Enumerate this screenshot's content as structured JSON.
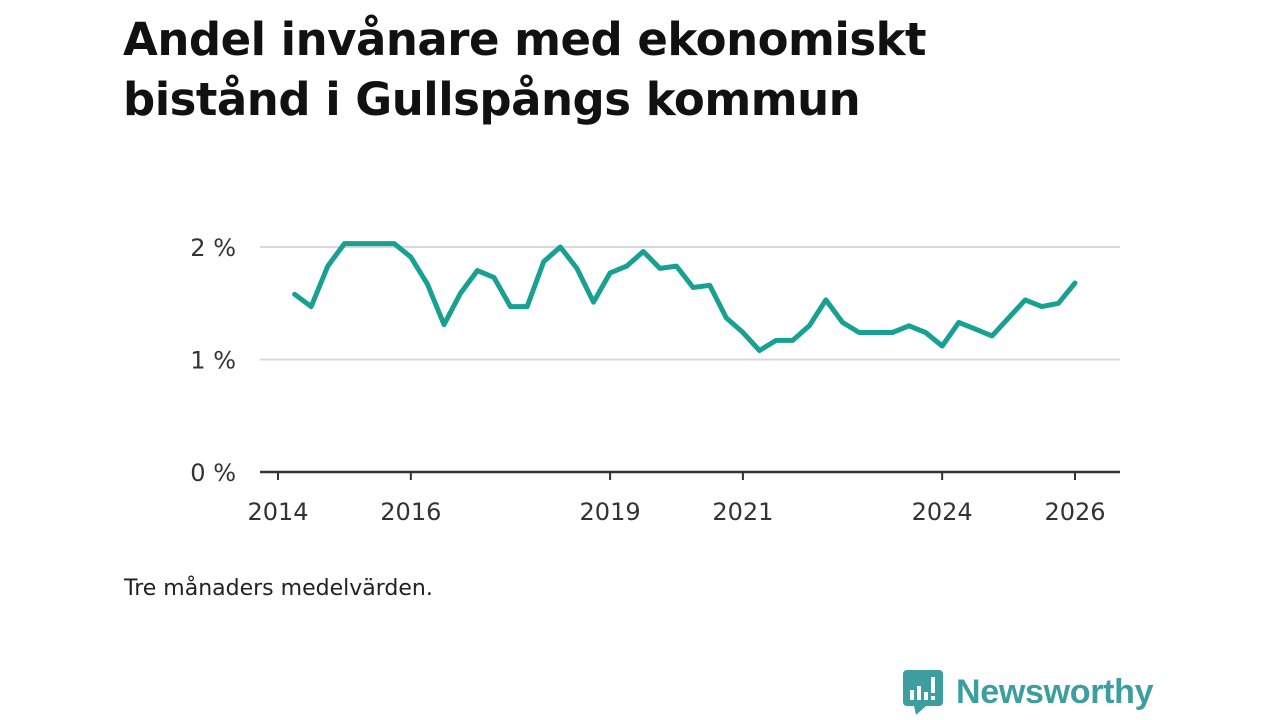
{
  "title_lines": [
    "Andel invånare med ekonomiskt",
    "bistånd i Gullspångs kommun"
  ],
  "caption": "Tre månaders medelvärden.",
  "brand": "Newsworthy",
  "colors": {
    "line": "#18a093",
    "grid": "#d9d9d9",
    "axis": "#333333",
    "brand": "#3d9ea0"
  },
  "chart_data": {
    "type": "line",
    "title": "Andel invånare med ekonomiskt bistånd i Gullspångs kommun",
    "xlabel": "",
    "ylabel": "",
    "xlim": [
      2013.75,
      2026.25
    ],
    "ylim": [
      0,
      2
    ],
    "grid": true,
    "y_ticks": [
      {
        "value": 0,
        "label": "0 %"
      },
      {
        "value": 1,
        "label": "1 %"
      },
      {
        "value": 2,
        "label": "2 %"
      }
    ],
    "x_ticks": [
      {
        "value": 2014,
        "label": "2014"
      },
      {
        "value": 2016,
        "label": "2016"
      },
      {
        "value": 2019,
        "label": "2019"
      },
      {
        "value": 2021,
        "label": "2021"
      },
      {
        "value": 2024,
        "label": "2024"
      },
      {
        "value": 2026,
        "label": "2026"
      }
    ],
    "series": [
      {
        "name": "Andel invånare med ekonomiskt bistånd",
        "x": [
          2014.25,
          2014.5,
          2014.75,
          2015.0,
          2015.25,
          2015.5,
          2015.75,
          2016.0,
          2016.25,
          2016.5,
          2016.75,
          2017.0,
          2017.25,
          2017.5,
          2017.75,
          2018.0,
          2018.25,
          2018.5,
          2018.75,
          2019.0,
          2019.25,
          2019.5,
          2019.75,
          2020.0,
          2020.25,
          2020.5,
          2020.75,
          2021.0,
          2021.25,
          2021.5,
          2021.75,
          2022.0,
          2022.25,
          2022.5,
          2022.75,
          2023.0,
          2023.25,
          2023.5,
          2023.75,
          2024.0,
          2024.25,
          2024.5,
          2024.75,
          2025.0,
          2025.25,
          2025.5,
          2025.75,
          2026.0
        ],
        "values": [
          1.58,
          1.47,
          1.83,
          2.03,
          2.03,
          2.03,
          2.03,
          1.91,
          1.67,
          1.31,
          1.59,
          1.79,
          1.73,
          1.47,
          1.47,
          1.87,
          2.0,
          1.81,
          1.51,
          1.77,
          1.83,
          1.96,
          1.81,
          1.83,
          1.64,
          1.66,
          1.37,
          1.24,
          1.08,
          1.17,
          1.17,
          1.3,
          1.53,
          1.33,
          1.24,
          1.24,
          1.24,
          1.3,
          1.24,
          1.12,
          1.33,
          1.27,
          1.21,
          1.37,
          1.53,
          1.47,
          1.5,
          1.68
        ]
      }
    ]
  }
}
